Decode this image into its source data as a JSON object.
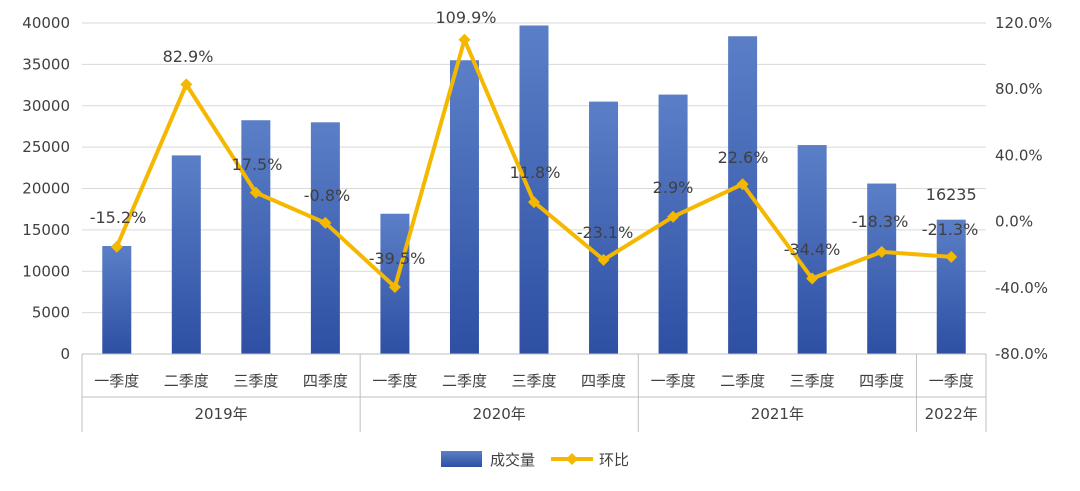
{
  "chart_data": {
    "type": "bar+line",
    "groups": [
      {
        "label": "2019年",
        "categories": [
          "一季度",
          "二季度",
          "三季度",
          "四季度"
        ]
      },
      {
        "label": "2020年",
        "categories": [
          "一季度",
          "二季度",
          "三季度",
          "四季度"
        ]
      },
      {
        "label": "2021年",
        "categories": [
          "一季度",
          "二季度",
          "三季度",
          "四季度"
        ]
      },
      {
        "label": "2022年",
        "categories": [
          "一季度"
        ]
      }
    ],
    "series": [
      {
        "name": "成交量",
        "type": "bar",
        "axis": "left",
        "values": [
          13050,
          24000,
          28250,
          28000,
          16950,
          35500,
          39700,
          30500,
          31350,
          38400,
          25250,
          20600,
          16235
        ],
        "value_labels": [
          "",
          "",
          "",
          "",
          "",
          "",
          "",
          "",
          "",
          "",
          "",
          "",
          "16235"
        ]
      },
      {
        "name": "环比",
        "type": "line",
        "axis": "right",
        "values": [
          -15.2,
          82.9,
          17.5,
          -0.8,
          -39.5,
          109.9,
          11.8,
          -23.1,
          2.9,
          22.6,
          -34.4,
          -18.3,
          -21.3
        ],
        "value_labels": [
          "-15.2%",
          "82.9%",
          "17.5%",
          "-0.8%",
          "-39.5%",
          "109.9%",
          "11.8%",
          "-23.1%",
          "2.9%",
          "22.6%",
          "-34.4%",
          "-18.3%",
          "-21.3%"
        ]
      }
    ],
    "left_axis": {
      "min": 0,
      "max": 40000,
      "ticks": [
        "0",
        "5000",
        "10000",
        "15000",
        "20000",
        "25000",
        "30000",
        "35000",
        "40000"
      ]
    },
    "right_axis": {
      "min": -80,
      "max": 120,
      "ticks": [
        "-80.0%",
        "-40.0%",
        "0.0%",
        "40.0%",
        "80.0%",
        "120.0%"
      ]
    },
    "grid": true,
    "legend_position": "bottom",
    "colors": {
      "bar_top": "#5b7fc7",
      "bar_bottom": "#2e4fa3",
      "line": "#f5b800",
      "grid": "#d9d9d9",
      "axis": "#bfbfbf",
      "text": "#404040"
    }
  }
}
